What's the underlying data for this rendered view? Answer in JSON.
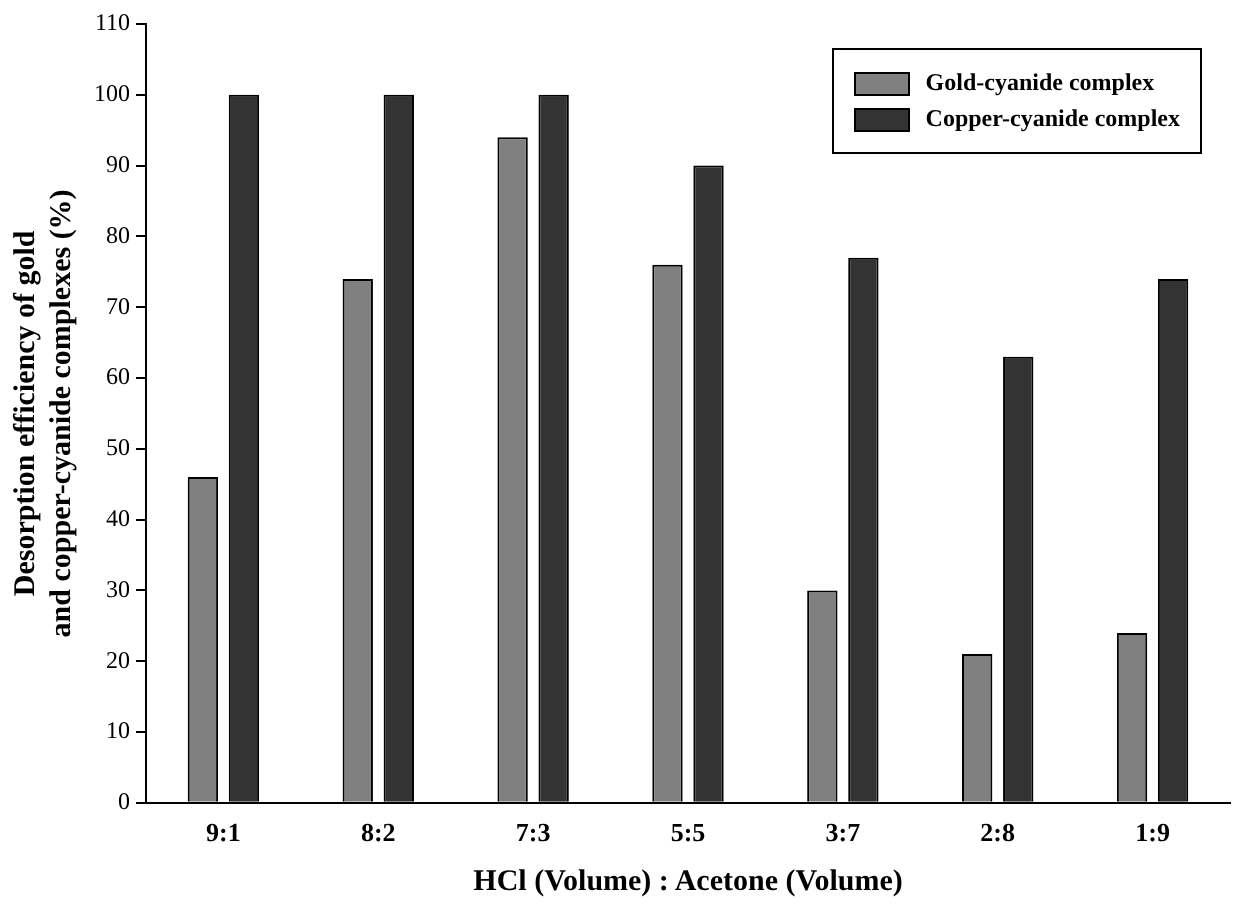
{
  "chart_data": {
    "type": "bar",
    "xlabel": "HCl (Volume) : Acetone (Volume)",
    "ylabel": "Desorption efficiency of gold and copper-cyanide complexes (%)",
    "categories": [
      "9:1",
      "8:2",
      "7:3",
      "5:5",
      "3:7",
      "2:8",
      "1:9"
    ],
    "series": [
      {
        "name": "Gold-cyanide complex",
        "color": "#808080",
        "values": [
          46,
          74,
          94,
          76,
          30,
          21,
          24
        ]
      },
      {
        "name": "Copper-cyanide complex",
        "color": "#333333",
        "values": [
          100,
          100,
          100,
          90,
          77,
          63,
          74
        ]
      }
    ],
    "ylim": [
      0,
      110
    ],
    "yticks": [
      0,
      10,
      20,
      30,
      40,
      50,
      60,
      70,
      80,
      90,
      100,
      110
    ],
    "grid": false,
    "legend": "top right"
  }
}
